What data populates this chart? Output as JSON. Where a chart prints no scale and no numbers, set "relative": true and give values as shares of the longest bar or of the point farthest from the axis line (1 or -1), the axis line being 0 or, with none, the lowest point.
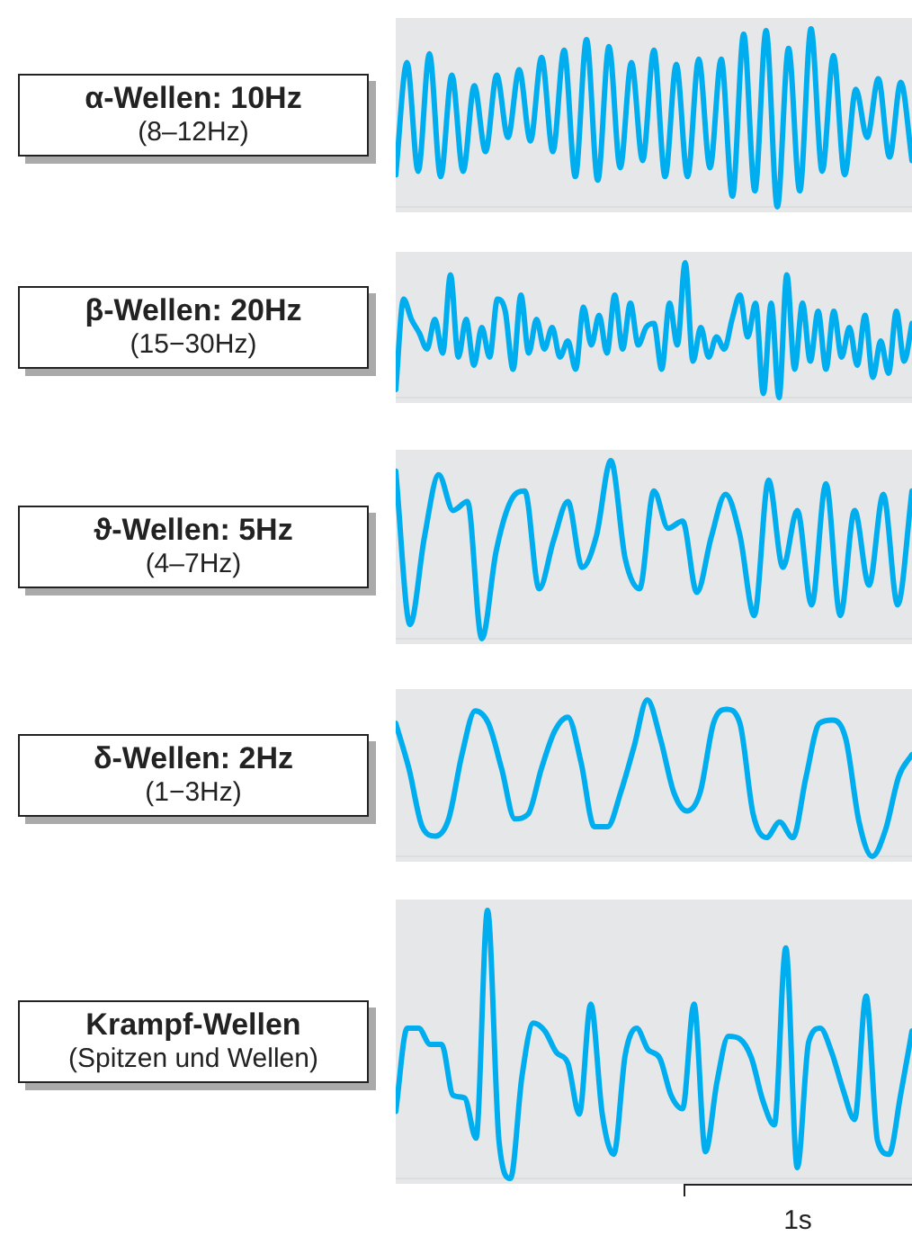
{
  "chart_data": [
    {
      "type": "line",
      "title": "α-Wellen: 10Hz",
      "subtitle": "(8–12Hz)",
      "relative": true,
      "categories": [
        null,
        null,
        null,
        null,
        null,
        null,
        null,
        null,
        null,
        null,
        null,
        null,
        null,
        null,
        null,
        null,
        null,
        null,
        null,
        null,
        null,
        null,
        null,
        null,
        null,
        null,
        null,
        null,
        null,
        null,
        null,
        null,
        null,
        null,
        null,
        null,
        null,
        null,
        null,
        null,
        null,
        null,
        null,
        null,
        null,
        null,
        null
      ],
      "series": [
        {
          "color": "#00aeef",
          "values": [
            0.18,
            0.81,
            0.2,
            0.86,
            0.17,
            0.74,
            0.2,
            0.68,
            0.31,
            0.74,
            0.39,
            0.77,
            0.37,
            0.84,
            0.31,
            0.88,
            0.17,
            0.94,
            0.15,
            0.9,
            0.22,
            0.81,
            0.26,
            0.88,
            0.17,
            0.8,
            0.17,
            0.83,
            0.22,
            0.83,
            0.06,
            0.97,
            0.09,
            0.99,
            0,
            0.89,
            0.09,
            1,
            0.2,
            0.85,
            0.18,
            0.66,
            0.39,
            0.72,
            0.28,
            0.7,
            0.26
          ]
        }
      ]
    },
    {
      "type": "line",
      "title": "β-Wellen: 20Hz",
      "subtitle": "(15−30Hz)",
      "relative": true,
      "categories": [
        null,
        null,
        null,
        null,
        null,
        null,
        null,
        null,
        null,
        null,
        null,
        null,
        null,
        null,
        null,
        null,
        null,
        null,
        null,
        null,
        null,
        null,
        null,
        null,
        null,
        null,
        null,
        null,
        null,
        null,
        null,
        null,
        null,
        null,
        null,
        null,
        null,
        null,
        null,
        null,
        null,
        null,
        null,
        null,
        null,
        null,
        null,
        null,
        null,
        null,
        null,
        null,
        null,
        null,
        null,
        null,
        null,
        null,
        null,
        null,
        null,
        null,
        null,
        null,
        null,
        null,
        null
      ],
      "series": [
        {
          "color": "#00aeef",
          "values": [
            0.06,
            0.73,
            0.58,
            0.48,
            0.36,
            0.58,
            0.33,
            0.91,
            0.3,
            0.58,
            0.24,
            0.52,
            0.3,
            0.73,
            0.64,
            0.21,
            0.76,
            0.33,
            0.58,
            0.36,
            0.52,
            0.3,
            0.42,
            0.21,
            0.67,
            0.39,
            0.61,
            0.33,
            0.76,
            0.36,
            0.7,
            0.39,
            0.52,
            0.55,
            0.21,
            0.7,
            0.39,
            1,
            0.27,
            0.52,
            0.3,
            0.45,
            0.36,
            0.58,
            0.76,
            0.45,
            0.7,
            0.03,
            0.7,
            0,
            0.91,
            0.21,
            0.7,
            0.27,
            0.64,
            0.21,
            0.64,
            0.3,
            0.52,
            0.24,
            0.61,
            0.15,
            0.42,
            0.18,
            0.64,
            0.27,
            0.55
          ]
        }
      ]
    },
    {
      "type": "line",
      "title": "ϑ-Wellen: 5Hz",
      "subtitle": "(4–7Hz)",
      "relative": true,
      "categories": [
        null,
        null,
        null,
        null,
        null,
        null,
        null,
        null,
        null,
        null,
        null,
        null,
        null,
        null,
        null,
        null,
        null,
        null,
        null,
        null,
        null,
        null,
        null,
        null,
        null,
        null,
        null,
        null,
        null,
        null,
        null,
        null,
        null,
        null,
        null,
        null,
        null
      ],
      "series": [
        {
          "color": "#00aeef",
          "values": [
            0.94,
            0.08,
            0.57,
            0.92,
            0.72,
            0.77,
            0,
            0.49,
            0.77,
            0.83,
            0.28,
            0.55,
            0.77,
            0.4,
            0.58,
            1,
            0.45,
            0.28,
            0.83,
            0.62,
            0.66,
            0.26,
            0.57,
            0.81,
            0.58,
            0.13,
            0.89,
            0.4,
            0.72,
            0.19,
            0.87,
            0.13,
            0.72,
            0.3,
            0.81,
            0.19,
            0.83
          ]
        }
      ]
    },
    {
      "type": "line",
      "title": "δ-Wellen: 2Hz",
      "subtitle": "(1−3Hz)",
      "relative": true,
      "categories": [
        null,
        null,
        null,
        null,
        null,
        null,
        null,
        null,
        null,
        null,
        null,
        null,
        null,
        null,
        null,
        null,
        null,
        null,
        null,
        null,
        null,
        null,
        null,
        null,
        null,
        null,
        null,
        null,
        null,
        null,
        null,
        null,
        null,
        null,
        null,
        null,
        null,
        null,
        null,
        null
      ],
      "series": [
        {
          "color": "#00aeef",
          "values": [
            0.85,
            0.56,
            0.19,
            0.13,
            0.24,
            0.65,
            0.93,
            0.85,
            0.56,
            0.24,
            0.27,
            0.56,
            0.8,
            0.89,
            0.6,
            0.19,
            0.19,
            0.41,
            0.7,
            1,
            0.75,
            0.41,
            0.29,
            0.41,
            0.85,
            0.94,
            0.85,
            0.27,
            0.12,
            0.22,
            0.12,
            0.51,
            0.85,
            0.87,
            0.75,
            0.22,
            0,
            0.17,
            0.51,
            0.65
          ]
        }
      ]
    },
    {
      "type": "line",
      "title": "Krampf-Wellen",
      "subtitle": "(Spitzen und Wellen)",
      "relative": true,
      "annotations": [
        "1s"
      ],
      "categories": [
        null,
        null,
        null,
        null,
        null,
        null,
        null,
        null,
        null,
        null,
        null,
        null,
        null,
        null,
        null,
        null,
        null,
        null,
        null,
        null,
        null,
        null,
        null,
        null,
        null,
        null,
        null,
        null,
        null,
        null,
        null,
        null,
        null,
        null,
        null,
        null,
        null,
        null,
        null,
        null,
        null,
        null,
        null,
        null,
        null,
        null
      ],
      "series": [
        {
          "color": "#00aeef",
          "values": [
            0.25,
            0.56,
            0.56,
            0.5,
            0.5,
            0.31,
            0.3,
            0.15,
            1,
            0.14,
            0,
            0.38,
            0.58,
            0.55,
            0.47,
            0.43,
            0.24,
            0.65,
            0.24,
            0.09,
            0.46,
            0.56,
            0.48,
            0.45,
            0.31,
            0.26,
            0.65,
            0.1,
            0.36,
            0.53,
            0.52,
            0.45,
            0.29,
            0.2,
            0.86,
            0.04,
            0.51,
            0.56,
            0.47,
            0.33,
            0.22,
            0.68,
            0.14,
            0.09,
            0.31,
            0.55
          ]
        }
      ]
    }
  ]
}
